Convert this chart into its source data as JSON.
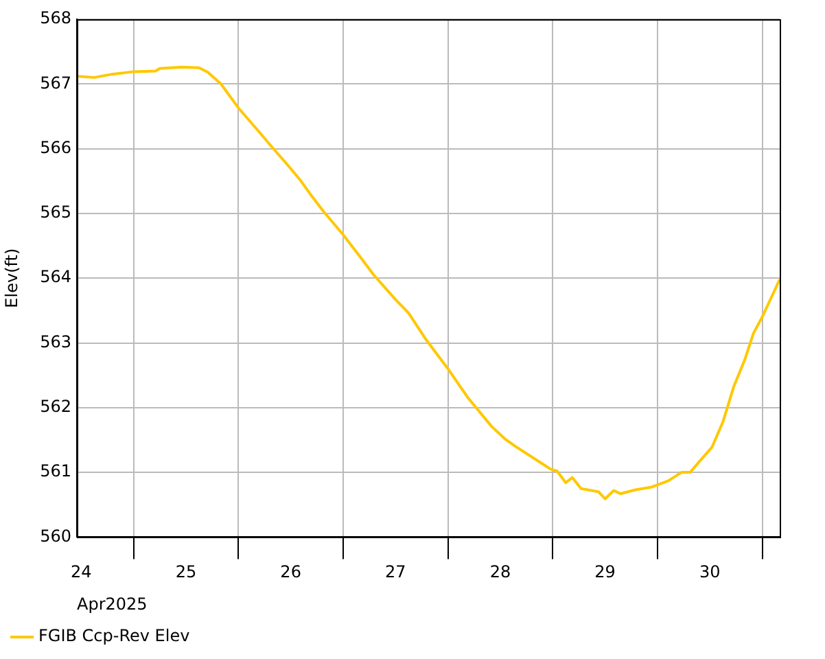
{
  "chart_data": {
    "type": "line",
    "xlabel": "Apr2025",
    "ylabel": "Elev(ft)",
    "x": [
      "2025-04-24T11:00",
      "2025-04-24T15:00",
      "2025-04-24T19:00",
      "2025-04-25T00:00",
      "2025-04-25T05:00",
      "2025-04-25T06:00",
      "2025-04-25T11:00",
      "2025-04-25T15:00",
      "2025-04-25T17:00",
      "2025-04-25T20:00",
      "2025-04-26T00:00",
      "2025-04-26T04:30",
      "2025-04-26T07:30",
      "2025-04-26T11:00",
      "2025-04-26T14:00",
      "2025-04-26T17:00",
      "2025-04-26T19:30",
      "2025-04-27T00:00",
      "2025-04-27T04:00",
      "2025-04-27T07:00",
      "2025-04-27T12:00",
      "2025-04-27T15:00",
      "2025-04-27T19:00",
      "2025-04-28T00:00",
      "2025-04-28T04:30",
      "2025-04-28T10:00",
      "2025-04-28T13:00",
      "2025-04-28T15:30",
      "2025-04-28T21:00",
      "2025-04-28T23:30",
      "2025-04-29T01:00",
      "2025-04-29T03:00",
      "2025-04-29T04:30",
      "2025-04-29T06:30",
      "2025-04-29T10:30",
      "2025-04-29T12:00",
      "2025-04-29T14:00",
      "2025-04-29T15:30",
      "2025-04-29T19:00",
      "2025-04-29T22:30",
      "2025-04-30T02:30",
      "2025-04-30T05:30",
      "2025-04-30T07:30",
      "2025-04-30T09:30",
      "2025-04-30T12:30",
      "2025-04-30T15:00",
      "2025-04-30T17:30",
      "2025-04-30T20:00",
      "2025-04-30T22:00",
      "2025-05-01T00:00",
      "2025-05-01T04:00"
    ],
    "series": [
      {
        "name": "FGIB Ccp-Rev Elev",
        "color": "#ffc800",
        "values": [
          567.12,
          567.1,
          567.15,
          567.19,
          567.2,
          567.24,
          567.26,
          567.25,
          567.18,
          567.0,
          566.63,
          566.28,
          566.04,
          565.77,
          565.53,
          565.25,
          565.03,
          564.67,
          564.32,
          564.05,
          563.67,
          563.46,
          563.05,
          562.6,
          562.16,
          561.71,
          561.52,
          561.4,
          561.16,
          561.05,
          561.02,
          560.84,
          560.92,
          560.75,
          560.7,
          560.59,
          560.72,
          560.67,
          560.73,
          560.77,
          560.87,
          561.0,
          561.0,
          561.16,
          561.39,
          561.78,
          562.33,
          562.74,
          563.15,
          563.4,
          563.98
        ]
      }
    ],
    "xlim": [
      "2025-04-24T11:00",
      "2025-05-01T04:00"
    ],
    "xticks": [
      {
        "value": "2025-04-24T12:00",
        "label": "24"
      },
      {
        "value": "2025-04-25T00:00",
        "label": null
      },
      {
        "value": "2025-04-25T12:00",
        "label": "25"
      },
      {
        "value": "2025-04-26T00:00",
        "label": null
      },
      {
        "value": "2025-04-26T12:00",
        "label": "26"
      },
      {
        "value": "2025-04-27T00:00",
        "label": null
      },
      {
        "value": "2025-04-27T12:00",
        "label": "27"
      },
      {
        "value": "2025-04-28T00:00",
        "label": null
      },
      {
        "value": "2025-04-28T12:00",
        "label": "28"
      },
      {
        "value": "2025-04-29T00:00",
        "label": null
      },
      {
        "value": "2025-04-29T12:00",
        "label": "29"
      },
      {
        "value": "2025-04-30T00:00",
        "label": null
      },
      {
        "value": "2025-04-30T12:00",
        "label": "30"
      },
      {
        "value": "2025-05-01T00:00",
        "label": null
      }
    ],
    "ylim": [
      560,
      568
    ],
    "yticks": [
      560,
      561,
      562,
      563,
      564,
      565,
      566,
      567,
      568
    ],
    "grid": true,
    "legend": "bottom left",
    "marker": "none",
    "line_style": "solid"
  }
}
